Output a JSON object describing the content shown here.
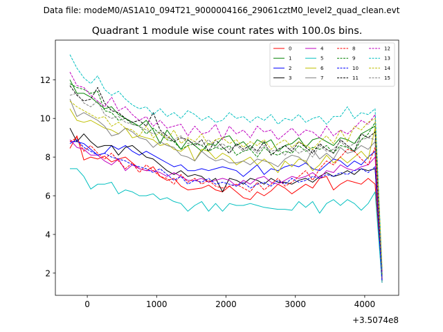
{
  "header": {
    "data_file_text": "Data file: modeM0/AS1A10_094T21_9000004166_29061cztM0_level2_quad_clean.evt"
  },
  "chart_data": {
    "type": "line",
    "title": "Quadrant 1 module wise count rates with 100.0s bins.",
    "xlabel": "",
    "ylabel": "",
    "x_offset_label": "+3.5074e8",
    "xlim": [
      -460,
      4490
    ],
    "ylim": [
      0.85,
      14.05
    ],
    "xticks": [
      0,
      1000,
      2000,
      3000,
      4000
    ],
    "yticks": [
      2,
      4,
      6,
      8,
      10,
      12
    ],
    "x": [
      -250,
      -150,
      -50,
      50,
      150,
      250,
      350,
      450,
      550,
      650,
      750,
      850,
      950,
      1050,
      1150,
      1250,
      1350,
      1450,
      1550,
      1650,
      1750,
      1850,
      1950,
      2050,
      2150,
      2250,
      2350,
      2450,
      2550,
      2650,
      2750,
      2850,
      2950,
      3050,
      3150,
      3250,
      3350,
      3450,
      3550,
      3650,
      3750,
      3850,
      3950,
      4050,
      4150,
      4250
    ],
    "legend": {
      "position": "top-right",
      "columns": 4
    },
    "series": [
      {
        "name": "0",
        "color": "#ff0000",
        "dash": "solid",
        "values": [
          8.45,
          9.1,
          7.85,
          8.0,
          7.9,
          8.05,
          7.75,
          7.9,
          8.0,
          7.7,
          7.4,
          7.3,
          7.5,
          7.0,
          6.8,
          6.9,
          6.5,
          6.3,
          6.35,
          6.4,
          6.55,
          6.3,
          6.2,
          6.5,
          6.2,
          5.9,
          5.8,
          6.2,
          6.0,
          6.25,
          6.6,
          6.4,
          6.1,
          6.35,
          6.6,
          6.4,
          6.9,
          7.0,
          6.3,
          6.6,
          6.8,
          6.7,
          6.6,
          6.9,
          6.6,
          1.5
        ]
      },
      {
        "name": "1",
        "color": "#008000",
        "dash": "solid",
        "values": [
          12.0,
          11.3,
          11.3,
          11.1,
          10.8,
          10.5,
          10.6,
          10.2,
          10.0,
          9.8,
          9.6,
          9.9,
          9.4,
          8.7,
          9.4,
          8.9,
          8.4,
          8.9,
          8.6,
          8.3,
          8.7,
          8.6,
          9.0,
          9.1,
          8.6,
          8.8,
          8.4,
          8.9,
          8.7,
          8.9,
          8.3,
          8.6,
          8.7,
          9.0,
          8.5,
          8.9,
          9.0,
          8.8,
          8.6,
          9.0,
          8.9,
          8.7,
          9.2,
          9.4,
          9.6,
          1.8
        ]
      },
      {
        "name": "2",
        "color": "#0000ff",
        "dash": "solid",
        "values": [
          8.8,
          8.8,
          8.7,
          8.4,
          8.1,
          8.2,
          8.6,
          8.4,
          8.6,
          8.3,
          8.1,
          8.3,
          8.1,
          7.9,
          7.7,
          7.5,
          7.6,
          7.3,
          7.3,
          7.4,
          7.3,
          7.4,
          7.5,
          7.4,
          7.3,
          7.0,
          7.3,
          7.6,
          7.1,
          7.4,
          7.3,
          7.5,
          7.6,
          7.5,
          7.7,
          7.4,
          7.3,
          7.6,
          7.9,
          7.8,
          7.5,
          7.8,
          7.6,
          8.0,
          8.3,
          1.6
        ]
      },
      {
        "name": "3",
        "color": "#000000",
        "dash": "solid",
        "values": [
          9.5,
          8.8,
          9.2,
          8.8,
          8.5,
          8.6,
          8.6,
          8.1,
          8.5,
          8.6,
          8.3,
          8.0,
          7.9,
          7.6,
          7.3,
          7.1,
          7.3,
          7.0,
          7.1,
          7.0,
          6.7,
          6.9,
          6.2,
          6.9,
          6.8,
          6.6,
          6.9,
          6.8,
          6.6,
          6.9,
          6.7,
          6.7,
          6.6,
          6.8,
          6.9,
          6.7,
          7.0,
          7.2,
          7.0,
          7.1,
          7.3,
          7.1,
          7.4,
          7.3,
          7.4,
          1.6
        ]
      },
      {
        "name": "4",
        "color": "#bf00bf",
        "dash": "solid",
        "values": [
          8.9,
          8.5,
          8.4,
          8.1,
          8.1,
          7.8,
          7.6,
          7.9,
          7.3,
          7.6,
          7.4,
          7.3,
          7.3,
          7.2,
          7.0,
          7.2,
          7.0,
          6.8,
          6.8,
          6.9,
          6.7,
          6.8,
          6.9,
          6.8,
          6.5,
          6.8,
          6.6,
          6.9,
          7.0,
          6.7,
          6.6,
          6.8,
          7.0,
          6.9,
          7.0,
          7.2,
          6.9,
          7.3,
          7.2,
          7.6,
          7.4,
          7.3,
          7.5,
          7.6,
          8.0,
          1.7
        ]
      },
      {
        "name": "5",
        "color": "#00bfbf",
        "dash": "solid",
        "values": [
          7.4,
          7.4,
          7.0,
          6.35,
          6.6,
          6.6,
          6.7,
          6.1,
          6.3,
          6.2,
          6.0,
          6.0,
          6.1,
          5.8,
          5.9,
          5.7,
          5.6,
          5.2,
          5.5,
          5.7,
          5.2,
          5.6,
          5.2,
          5.6,
          5.5,
          5.5,
          5.6,
          5.5,
          5.4,
          5.35,
          5.3,
          5.3,
          5.25,
          5.7,
          5.4,
          5.7,
          5.1,
          5.6,
          5.8,
          5.5,
          5.8,
          5.6,
          5.25,
          5.6,
          6.2,
          1.5
        ]
      },
      {
        "name": "6",
        "color": "#bfbf00",
        "dash": "solid",
        "values": [
          10.5,
          9.9,
          9.8,
          9.9,
          9.7,
          9.5,
          9.4,
          9.2,
          9.5,
          9.0,
          9.1,
          9.0,
          8.9,
          8.6,
          8.7,
          8.4,
          8.3,
          8.6,
          7.8,
          8.4,
          8.3,
          7.9,
          8.2,
          8.0,
          7.6,
          7.8,
          8.0,
          7.6,
          7.9,
          7.6,
          7.2,
          7.8,
          7.5,
          7.9,
          7.8,
          7.3,
          7.6,
          8.1,
          7.7,
          8.0,
          7.7,
          8.0,
          8.3,
          7.9,
          9.5,
          1.9
        ]
      },
      {
        "name": "7",
        "color": "#808080",
        "dash": "solid",
        "values": [
          11.0,
          10.1,
          10.3,
          10.1,
          9.9,
          9.6,
          9.1,
          9.2,
          9.5,
          9.3,
          9.0,
          8.9,
          8.5,
          8.8,
          8.6,
          8.5,
          8.1,
          8.0,
          7.8,
          8.3,
          8.0,
          7.8,
          7.9,
          7.7,
          7.7,
          7.8,
          7.6,
          7.9,
          7.8,
          7.7,
          7.5,
          7.9,
          8.1,
          8.0,
          7.7,
          8.4,
          7.9,
          8.2,
          7.9,
          8.5,
          8.2,
          8.3,
          8.6,
          8.4,
          8.8,
          2.0
        ]
      },
      {
        "name": "8",
        "color": "#ff0000",
        "dash": "dashed",
        "values": [
          8.8,
          9.0,
          8.3,
          8.6,
          8.2,
          7.9,
          8.2,
          7.8,
          7.4,
          7.7,
          7.2,
          7.6,
          7.3,
          7.0,
          6.9,
          6.6,
          7.1,
          6.7,
          6.9,
          6.6,
          6.8,
          6.5,
          6.4,
          6.5,
          6.6,
          6.4,
          6.2,
          6.7,
          6.3,
          6.6,
          6.9,
          6.5,
          6.7,
          7.0,
          7.3,
          6.8,
          7.4,
          7.8,
          7.6,
          8.0,
          8.4,
          8.3,
          7.9,
          7.6,
          8.5,
          1.6
        ]
      },
      {
        "name": "9",
        "color": "#008000",
        "dash": "dashed",
        "values": [
          11.8,
          11.6,
          11.5,
          11.3,
          11.4,
          10.4,
          10.3,
          9.9,
          10.0,
          9.7,
          9.6,
          9.2,
          9.5,
          9.2,
          8.9,
          8.8,
          8.4,
          8.6,
          8.7,
          8.6,
          8.3,
          8.5,
          8.4,
          8.6,
          8.1,
          8.3,
          8.4,
          8.0,
          8.5,
          8.2,
          8.1,
          8.3,
          8.2,
          8.6,
          8.3,
          8.5,
          8.4,
          8.6,
          8.2,
          8.6,
          8.5,
          8.3,
          8.9,
          9.2,
          9.8,
          1.9
        ]
      },
      {
        "name": "10",
        "color": "#0000ff",
        "dash": "dashed",
        "values": [
          8.7,
          8.9,
          8.5,
          8.3,
          8.1,
          8.2,
          8.0,
          7.9,
          7.8,
          7.6,
          7.5,
          7.4,
          7.2,
          7.4,
          7.1,
          6.8,
          7.0,
          6.6,
          6.8,
          6.7,
          6.9,
          6.6,
          6.7,
          6.6,
          6.5,
          6.7,
          6.4,
          6.6,
          6.7,
          6.5,
          6.8,
          6.6,
          6.9,
          6.7,
          6.8,
          7.0,
          6.9,
          7.1,
          7.0,
          7.2,
          7.1,
          7.3,
          7.4,
          7.2,
          7.5,
          1.6
        ]
      },
      {
        "name": "11",
        "color": "#000000",
        "dash": "dashed",
        "values": [
          11.7,
          11.2,
          10.9,
          11.0,
          11.6,
          10.8,
          10.4,
          10.3,
          10.0,
          9.8,
          9.9,
          9.6,
          10.3,
          9.4,
          9.1,
          8.8,
          9.0,
          8.9,
          8.6,
          8.9,
          8.3,
          8.9,
          8.5,
          8.2,
          8.7,
          8.4,
          8.6,
          8.3,
          8.8,
          8.1,
          8.4,
          8.6,
          8.3,
          8.8,
          8.5,
          8.2,
          8.7,
          8.4,
          8.2,
          8.9,
          8.6,
          8.3,
          9.2,
          9.0,
          9.3,
          2.0
        ]
      },
      {
        "name": "12",
        "color": "#bf00bf",
        "dash": "dashed",
        "values": [
          12.4,
          11.7,
          11.6,
          11.2,
          10.9,
          10.6,
          11.1,
          10.4,
          10.6,
          10.2,
          9.9,
          10.1,
          9.6,
          9.9,
          9.5,
          9.6,
          9.7,
          9.1,
          9.6,
          9.2,
          9.3,
          9.7,
          8.9,
          9.6,
          9.2,
          9.4,
          9.0,
          9.6,
          9.3,
          9.4,
          8.9,
          9.2,
          9.5,
          9.1,
          9.4,
          9.3,
          9.0,
          9.6,
          9.1,
          9.4,
          9.2,
          9.5,
          9.9,
          9.7,
          10.2,
          2.1
        ]
      },
      {
        "name": "13",
        "color": "#00bfbf",
        "dash": "dashed",
        "values": [
          13.3,
          12.6,
          12.1,
          11.8,
          12.2,
          11.5,
          11.2,
          11.4,
          11.0,
          10.7,
          10.5,
          10.6,
          10.2,
          10.5,
          10.1,
          10.3,
          10.0,
          10.4,
          10.2,
          9.9,
          10.1,
          9.8,
          9.9,
          10.3,
          10.0,
          10.1,
          9.8,
          10.1,
          9.9,
          10.2,
          9.7,
          10.0,
          9.9,
          10.2,
          9.8,
          10.0,
          10.1,
          9.7,
          10.1,
          10.1,
          10.6,
          10.0,
          10.3,
          10.2,
          10.5,
          2.2
        ]
      },
      {
        "name": "14",
        "color": "#bfbf00",
        "dash": "dashed",
        "values": [
          10.9,
          10.6,
          10.4,
          10.2,
          10.0,
          10.1,
          9.6,
          9.8,
          9.5,
          9.4,
          9.1,
          9.6,
          9.0,
          9.3,
          8.9,
          9.4,
          8.7,
          9.0,
          8.8,
          9.2,
          8.6,
          8.9,
          9.0,
          8.7,
          8.9,
          8.5,
          8.8,
          8.6,
          8.9,
          8.4,
          8.7,
          8.9,
          8.5,
          8.8,
          8.6,
          8.4,
          8.8,
          9.1,
          8.7,
          9.4,
          8.8,
          9.6,
          9.4,
          9.8,
          10.0,
          2.3
        ]
      },
      {
        "name": "15",
        "color": "#808080",
        "dash": "dashed",
        "values": [
          11.2,
          11.3,
          10.8,
          10.6,
          10.9,
          10.2,
          10.0,
          10.1,
          9.8,
          9.7,
          9.6,
          9.4,
          9.2,
          9.3,
          9.0,
          8.9,
          9.1,
          8.7,
          8.8,
          8.6,
          8.9,
          8.5,
          8.7,
          8.4,
          8.6,
          8.3,
          8.5,
          8.2,
          8.6,
          8.3,
          8.4,
          8.1,
          8.5,
          8.2,
          8.4,
          8.0,
          8.6,
          8.3,
          8.4,
          8.8,
          8.5,
          8.7,
          8.9,
          9.0,
          8.9,
          2.0
        ]
      }
    ]
  }
}
